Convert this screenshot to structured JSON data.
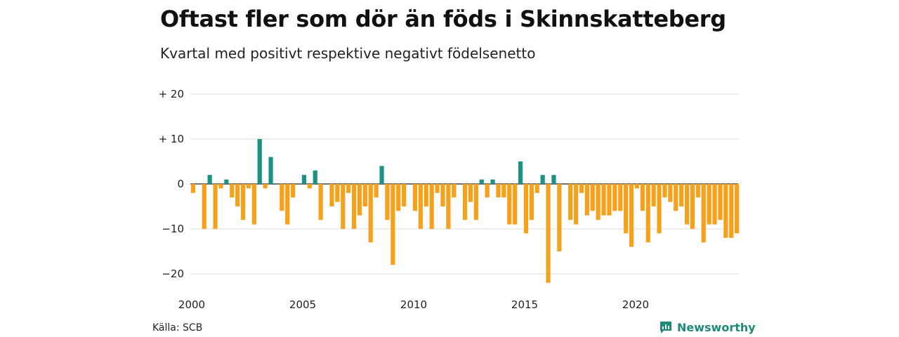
{
  "header": {
    "title": "Oftast fler som dör än föds i Skinnskatteberg",
    "subtitle": "Kvartal med positivt respektive negativt födelsenetto"
  },
  "footer": {
    "source": "Källa: SCB",
    "brand": "Newsworthy",
    "brand_icon": "newsworthy-logo-icon"
  },
  "colors": {
    "positive": "#1b9384",
    "negative": "#f7a11a",
    "grid": "#dddddd",
    "brand": "#1e8a7a"
  },
  "chart_data": {
    "type": "bar",
    "x_start_year": 2000,
    "periods_per_year": 4,
    "ylim": [
      -22,
      20
    ],
    "y_ticks": [
      20,
      10,
      0,
      -10,
      -20
    ],
    "y_tick_labels": [
      "+ 20",
      "+ 10",
      "0",
      "−10",
      "−20"
    ],
    "x_ticks": [
      2000,
      2005,
      2010,
      2015,
      2020
    ],
    "x_tick_labels": [
      "2000",
      "2005",
      "2010",
      "2015",
      "2020"
    ],
    "grid": true,
    "legend": "none",
    "values": [
      -2,
      0,
      -10,
      2,
      -10,
      -1,
      1,
      -3,
      -5,
      -8,
      -1,
      -9,
      10,
      -1,
      6,
      0,
      -6,
      -9,
      -3,
      0,
      2,
      -1,
      3,
      -8,
      0,
      -5,
      -4,
      -10,
      -2,
      -10,
      -7,
      -5,
      -13,
      -3,
      4,
      -8,
      -18,
      -6,
      -5,
      0,
      -6,
      -10,
      -5,
      -10,
      -2,
      -5,
      -10,
      -3,
      0,
      -8,
      -4,
      -8,
      1,
      -3,
      1,
      -3,
      -3,
      -9,
      -9,
      5,
      -11,
      -8,
      -2,
      2,
      -22,
      2,
      -15,
      0,
      -8,
      -9,
      -2,
      -7,
      -6,
      -8,
      -7,
      -7,
      -6,
      -6,
      -11,
      -14,
      -1,
      -6,
      -13,
      -5,
      -11,
      -3,
      -4,
      -6,
      -5,
      -9,
      -10,
      -3,
      -13,
      -9,
      -9,
      -8,
      -12,
      -12,
      -11
    ]
  }
}
